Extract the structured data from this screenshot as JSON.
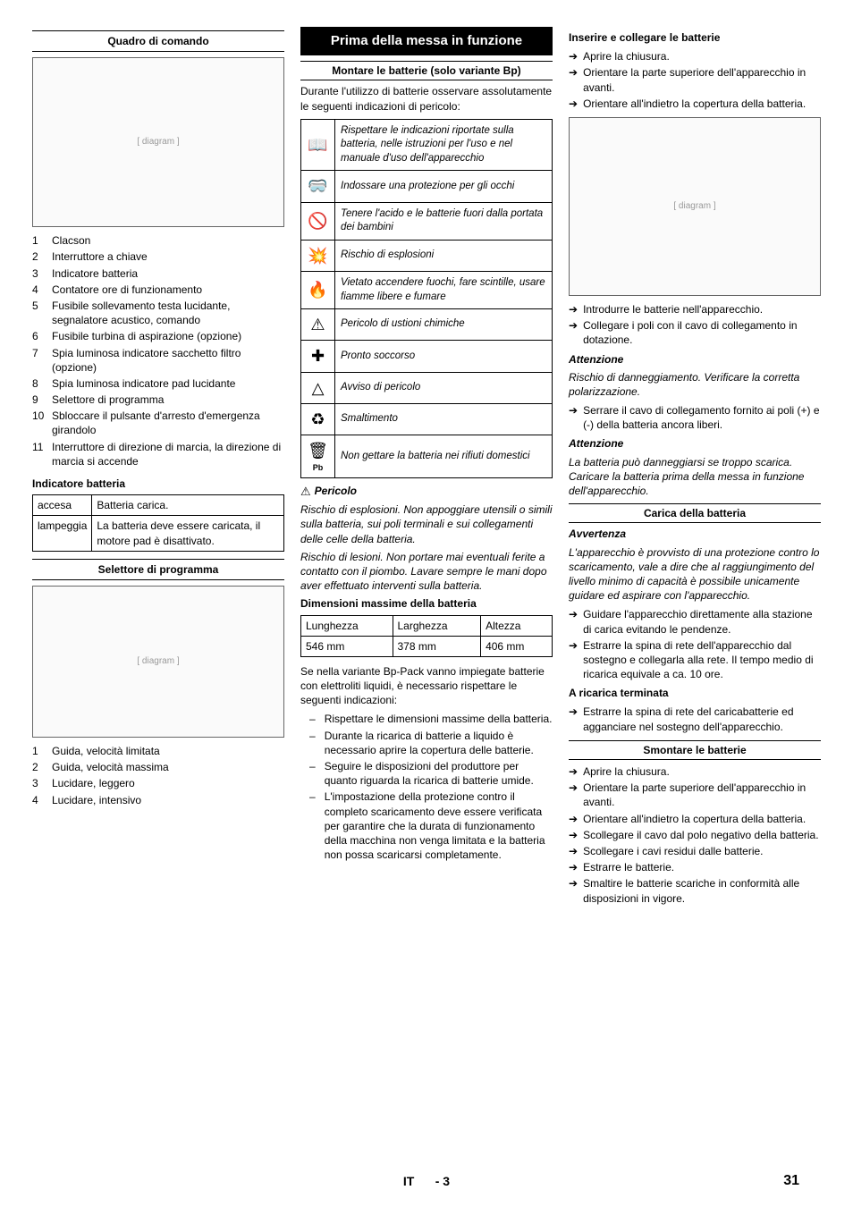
{
  "col1": {
    "title1": "Quadro di comando",
    "legend1": [
      "Clacson",
      "Interruttore a chiave",
      "Indicatore batteria",
      "Contatore ore di funzionamento",
      "Fusibile sollevamento testa lucidante, segnalatore acustico, comando",
      "Fusibile turbina di aspirazione (opzione)",
      "Spia luminosa indicatore sacchetto filtro (opzione)",
      "Spia luminosa indicatore pad lucidante",
      "Selettore di programma",
      "Sbloccare il pulsante d'arresto d'emergenza girandolo",
      "Interruttore di direzione di marcia, la direzione di marcia si accende"
    ],
    "indicator_title": "Indicatore batteria",
    "indicator_table": {
      "r1c1": "accesa",
      "r1c2": "Batteria carica.",
      "r2c1": "lampeggia",
      "r2c2": "La batteria deve essere caricata, il motore pad è disattivato."
    },
    "title2": "Selettore di programma",
    "legend2": [
      "Guida, velocità limitata",
      "Guida, velocità massima",
      "Lucidare, leggero",
      "Lucidare, intensivo"
    ]
  },
  "col2": {
    "main_title": "Prima della messa in funzione",
    "sub1": "Montare le batterie (solo variante Bp)",
    "intro": "Durante l'utilizzo di batterie osservare assolutamente le seguenti indicazioni di pericolo:",
    "hazards": [
      {
        "icon": "📖",
        "text": "Rispettare le indicazioni riportate sulla batteria, nelle istruzioni per l'uso e nel manuale d'uso dell'apparecchio"
      },
      {
        "icon": "🥽",
        "text": "Indossare una protezione per gli occhi"
      },
      {
        "icon": "🚫",
        "text": "Tenere l'acido e le batterie fuori dalla portata dei bambini"
      },
      {
        "icon": "💥",
        "text": "Rischio di esplosioni"
      },
      {
        "icon": "🔥",
        "text": "Vietato accendere fuochi, fare scintille, usare fiamme libere e fumare"
      },
      {
        "icon": "⚠",
        "text": "Pericolo di ustioni chimiche"
      },
      {
        "icon": "✚",
        "text": "Pronto soccorso"
      },
      {
        "icon": "△",
        "text": "Avviso di pericolo"
      },
      {
        "icon": "♻",
        "text": "Smaltimento"
      },
      {
        "icon": "🗑",
        "sub": "Pb",
        "text": "Non gettare la batteria nei rifiuti domestici"
      }
    ],
    "pericolo_label": "Pericolo",
    "pericolo_body1": "Rischio di esplosioni. Non appoggiare utensili o simili sulla batteria, sui poli terminali e sui collegamenti delle celle della batteria.",
    "pericolo_body2": "Rischio di lesioni. Non portare mai eventuali ferite a contatto con il piombo. Lavare sempre le mani dopo aver effettuato interventi sulla batteria.",
    "dim_title": "Dimensioni massime della batteria",
    "dim_table": {
      "h1": "Lunghezza",
      "h2": "Larghezza",
      "h3": "Altezza",
      "v1": "546 mm",
      "v2": "378 mm",
      "v3": "406 mm"
    },
    "dim_body": "Se nella variante Bp-Pack vanno impiegate batterie con elettroliti liquidi, è necessario rispettare le seguenti indicazioni:",
    "dim_list": [
      "Rispettare le dimensioni massime della batteria.",
      "Durante la ricarica di batterie a liquido è necessario aprire la copertura delle batterie.",
      "Seguire le disposizioni del produttore per quanto riguarda la ricarica di batterie umide.",
      "L'impostazione della protezione contro il completo scaricamento deve essere verificata per garantire che la durata di funzionamento della macchina non venga limitata e la batteria non possa scaricarsi completamente."
    ]
  },
  "col3": {
    "insert_title": "Inserire e collegare le batterie",
    "insert_list1": [
      "Aprire la chiusura.",
      "Orientare la parte superiore dell'apparecchio in avanti.",
      "Orientare all'indietro la copertura della batteria."
    ],
    "insert_list2": [
      "Introdurre le batterie nell'apparecchio.",
      "Collegare i poli con il cavo di collegamento in dotazione."
    ],
    "att1_label": "Attenzione",
    "att1_body": "Rischio di danneggiamento. Verificare la corretta polarizzazione.",
    "att1_list": [
      "Serrare il cavo di collegamento fornito ai poli (+) e (-) della batteria ancora liberi."
    ],
    "att2_label": "Attenzione",
    "att2_body": "La batteria può danneggiarsi se troppo scarica. Caricare la batteria prima della messa in funzione dell'apparecchio.",
    "carica_title": "Carica della batteria",
    "avv_label": "Avvertenza",
    "avv_body": "L'apparecchio è provvisto di una protezione contro lo scaricamento, vale a dire che al raggiungimento del livello minimo di capacità è possibile unicamente guidare ed aspirare con l'apparecchio.",
    "avv_list": [
      "Guidare l'apparecchio direttamente alla stazione di carica evitando le pendenze.",
      "Estrarre la spina di rete dell'apparecchio dal sostegno e collegarla alla rete. Il tempo medio di ricarica equivale a ca. 10 ore."
    ],
    "ric_title": "A ricarica terminata",
    "ric_list": [
      "Estrarre la spina di rete del caricabatterie ed agganciare nel sostegno dell'apparecchio."
    ],
    "smont_title": "Smontare le batterie",
    "smont_list": [
      "Aprire la chiusura.",
      "Orientare la parte superiore dell'apparecchio in avanti.",
      "Orientare all'indietro la copertura della batteria.",
      "Scollegare il cavo dal polo negativo della batteria.",
      "Scollegare i cavi residui dalle batterie.",
      "Estrarre le batterie.",
      "Smaltire le batterie scariche in conformità alle disposizioni in vigore."
    ]
  },
  "footer": {
    "lang": "IT",
    "sep": "-",
    "page_rel": "3",
    "page_abs": "31"
  }
}
